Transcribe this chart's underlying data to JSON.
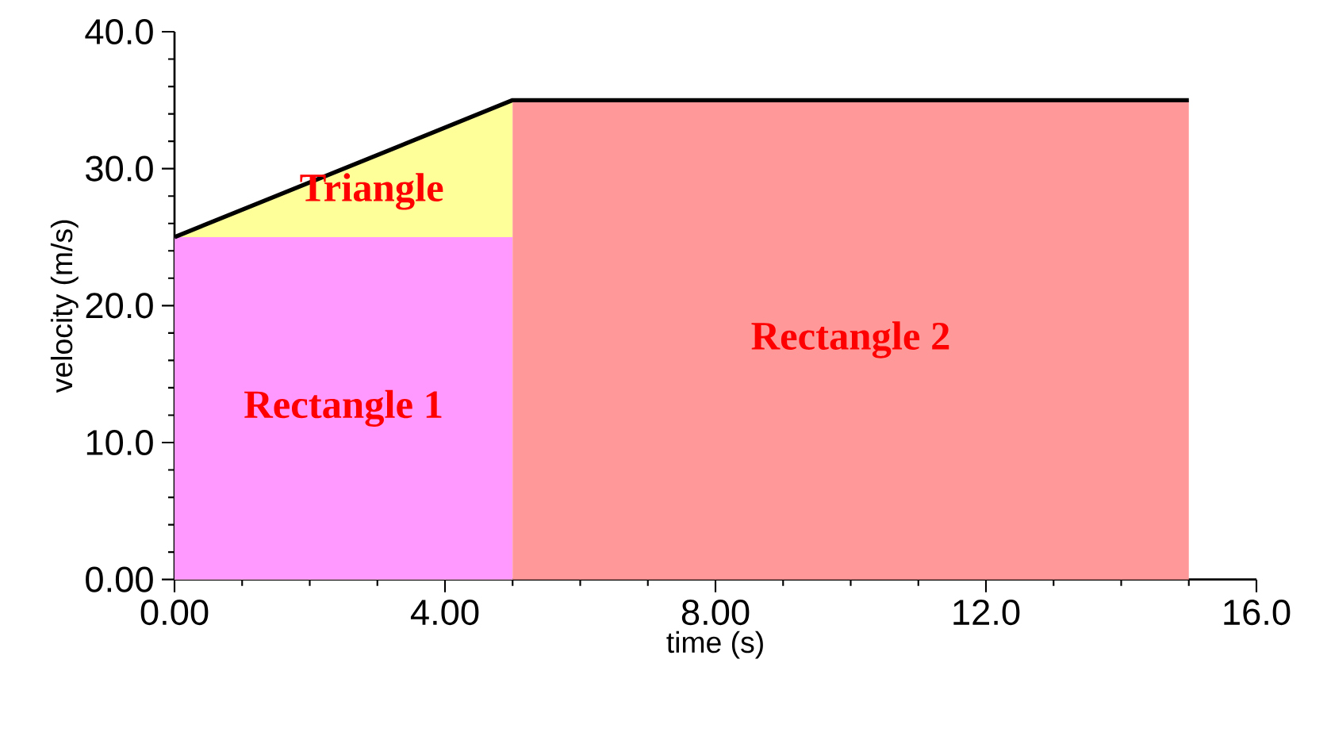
{
  "chart_data": {
    "type": "area",
    "xlabel": "time (s)",
    "ylabel": "velocity (m/s)",
    "xlim": [
      0,
      16
    ],
    "ylim": [
      0,
      40
    ],
    "xticks": [
      {
        "value": 0,
        "label": "0.00"
      },
      {
        "value": 4,
        "label": "4.00"
      },
      {
        "value": 8,
        "label": "8.00"
      },
      {
        "value": 12,
        "label": "12.0"
      },
      {
        "value": 16,
        "label": "16.0"
      }
    ],
    "yticks": [
      {
        "value": 0,
        "label": "0.00"
      },
      {
        "value": 10,
        "label": "10.0"
      },
      {
        "value": 20,
        "label": "20.0"
      },
      {
        "value": 30,
        "label": "30.0"
      },
      {
        "value": 40,
        "label": "40.0"
      }
    ],
    "series": [
      {
        "name": "Triangle",
        "color": "#ffff99",
        "x": [
          0,
          5
        ],
        "values": [
          25,
          35
        ]
      },
      {
        "name": "Rectangle 1",
        "color": "#ff99ff",
        "x": [
          0,
          5
        ],
        "values": [
          25,
          25
        ]
      },
      {
        "name": "Rectangle 2",
        "color": "#ff9999",
        "x": [
          5,
          15
        ],
        "values": [
          35,
          35
        ]
      },
      {
        "type": "line",
        "color": "#000000",
        "x": [
          0,
          5,
          15
        ],
        "values": [
          25,
          35,
          35
        ],
        "line_style": "solid"
      }
    ],
    "grid": false
  }
}
